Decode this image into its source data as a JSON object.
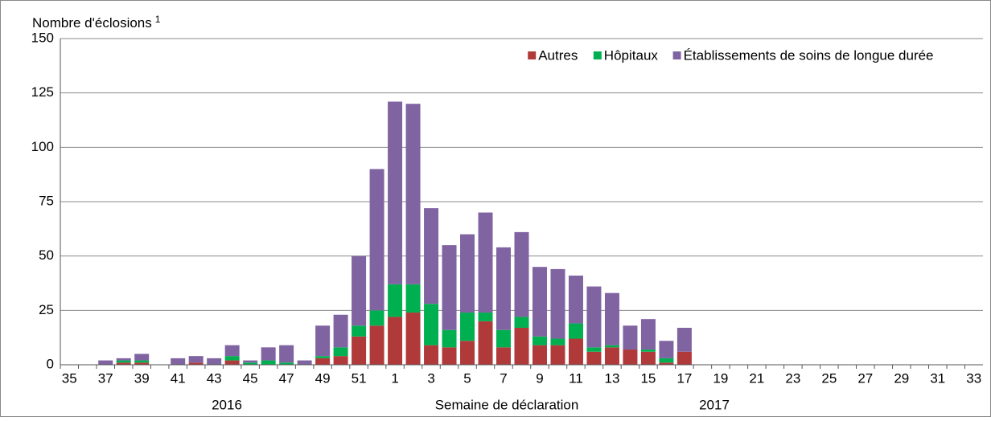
{
  "chart_data": {
    "type": "stacked_bar",
    "title": "Nombre d'éclosions",
    "title_note": "1",
    "x_label": "Semaine de déclaration",
    "year_labels": [
      "2016",
      "2017"
    ],
    "categories": [
      "35",
      null,
      "37",
      null,
      "39",
      null,
      "41",
      null,
      "43",
      null,
      "45",
      null,
      "47",
      null,
      "49",
      null,
      "51",
      null,
      "1",
      null,
      "3",
      null,
      "5",
      null,
      "7",
      null,
      "9",
      null,
      "11",
      null,
      "13",
      null,
      "15",
      null,
      "17",
      null,
      "19",
      null,
      "21",
      null,
      "23",
      null,
      "25",
      null,
      "27",
      null,
      "29",
      null,
      "31",
      null,
      "33"
    ],
    "series": [
      {
        "name": "Autres",
        "color": "#b03a3a",
        "values": [
          0,
          0,
          0,
          1,
          1,
          0,
          0,
          1,
          0,
          2,
          0,
          0,
          0,
          0,
          3,
          4,
          13,
          18,
          22,
          24,
          9,
          8,
          11,
          20,
          8,
          17,
          9,
          9,
          12,
          6,
          8,
          7,
          6,
          1,
          6,
          0,
          0,
          0,
          0,
          0,
          0,
          0,
          0,
          0,
          0,
          0,
          0,
          0,
          0,
          0,
          0
        ]
      },
      {
        "name": "Hôpitaux",
        "color": "#00b050",
        "values": [
          0,
          0,
          0,
          1,
          1,
          0,
          0,
          0,
          0,
          2,
          1,
          2,
          1,
          0,
          1,
          4,
          5,
          7,
          15,
          13,
          19,
          8,
          13,
          4,
          8,
          5,
          4,
          3,
          7,
          2,
          1,
          0,
          1,
          2,
          0,
          0,
          0,
          0,
          0,
          0,
          0,
          0,
          0,
          0,
          0,
          0,
          0,
          0,
          0,
          0,
          0
        ]
      },
      {
        "name": "Établissements de soins de longue durée",
        "color": "#8064a2",
        "values": [
          0,
          0,
          2,
          1,
          3,
          0,
          3,
          3,
          3,
          5,
          1,
          6,
          8,
          2,
          14,
          15,
          32,
          65,
          84,
          83,
          44,
          39,
          36,
          46,
          38,
          39,
          32,
          32,
          22,
          28,
          24,
          11,
          14,
          8,
          11,
          0,
          0,
          0,
          0,
          0,
          0,
          0,
          0,
          0,
          0,
          0,
          0,
          0,
          0,
          0,
          0
        ]
      }
    ],
    "ylim": [
      0,
      150
    ],
    "yticks": [
      0,
      25,
      50,
      75,
      100,
      125,
      150
    ],
    "grid": true,
    "legend": "top-right"
  }
}
